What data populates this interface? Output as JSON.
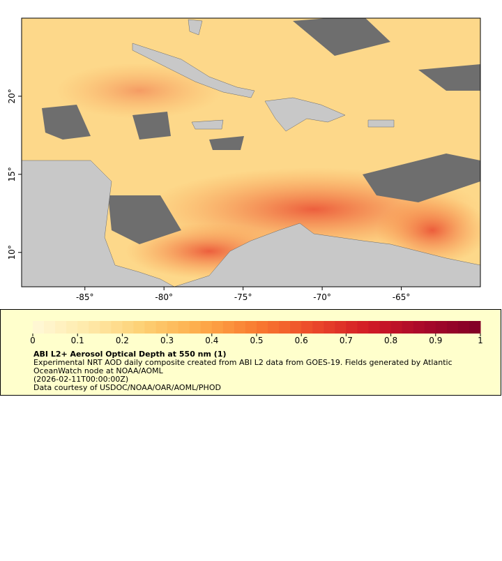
{
  "map": {
    "xlim": [
      -89,
      -60
    ],
    "ylim": [
      7.8,
      25
    ],
    "xticks": [
      {
        "value": -85,
        "label": "-85°"
      },
      {
        "value": -80,
        "label": "-80°"
      },
      {
        "value": -75,
        "label": "-75°"
      },
      {
        "value": -70,
        "label": "-70°"
      },
      {
        "value": -65,
        "label": "-65°"
      }
    ],
    "yticks": [
      {
        "value": 10,
        "label": "10°"
      },
      {
        "value": 15,
        "label": "15°"
      },
      {
        "value": 20,
        "label": "20°"
      }
    ]
  },
  "colorbar": {
    "lim": [
      0,
      1
    ],
    "ticks": [
      0,
      0.1,
      0.2,
      0.3,
      0.4,
      0.5,
      0.6,
      0.7,
      0.8,
      0.9,
      1
    ],
    "colors": [
      "#fff8d8",
      "#fee9a8",
      "#fdcf72",
      "#fdab4a",
      "#f97b30",
      "#ec4a2a",
      "#d11b26",
      "#a8082a",
      "#800026"
    ]
  },
  "legend": {
    "title": "ABI L2+ Aerosol Optical Depth at 550 nm (1)",
    "lines": [
      "Experimental NRT AOD daily composite created from ABI L2 data from GOES-19. Fields generated by Atlantic",
      "OceanWatch node at NOAA/AOML",
      "(2026-02-11T00:00:00Z)",
      "Data courtesy of USDOC/NOAA/OAR/AOML/PHOD"
    ]
  }
}
